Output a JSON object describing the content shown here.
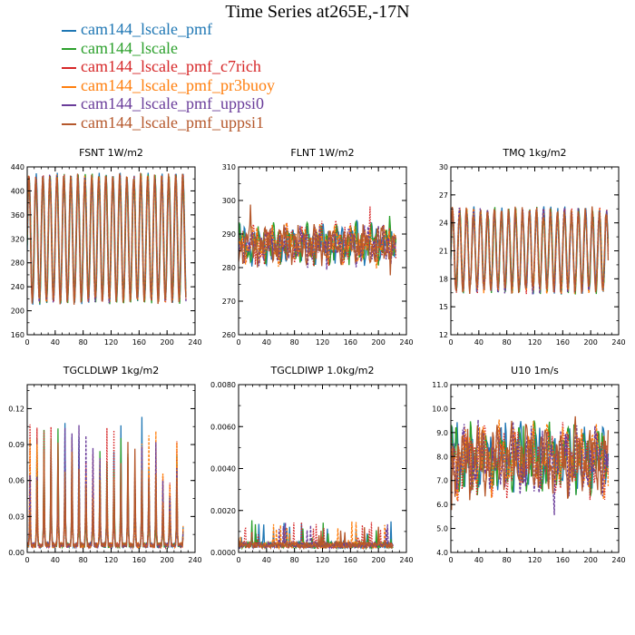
{
  "title": "Time Series at265E,-17N",
  "legend": [
    {
      "name": "cam144_lscale_pmf",
      "color": "#1f77b4",
      "dash": "solid"
    },
    {
      "name": "cam144_lscale",
      "color": "#2ca02c",
      "dash": "solid"
    },
    {
      "name": "cam144_lscale_pmf_c7rich",
      "color": "#d62728",
      "dash": "dotted"
    },
    {
      "name": "cam144_lscale_pmf_pr3buoy",
      "color": "#ff7f0e",
      "dash": "dashed"
    },
    {
      "name": "cam144_lscale_pmf_uppsi0",
      "color": "#6a3d9a",
      "dash": "dashed"
    },
    {
      "name": "cam144_lscale_pmf_uppsi1",
      "color": "#b5582c",
      "dash": "solid"
    }
  ],
  "chart_data": [
    {
      "type": "line",
      "title": "FSNT   1W/m2",
      "ylim": [
        160,
        440
      ],
      "yticks": [
        "160",
        "200",
        "240",
        "280",
        "320",
        "360",
        "400",
        "440"
      ],
      "xlim": [
        0,
        240
      ],
      "xticks": [
        "0",
        "40",
        "80",
        "120",
        "160",
        "200",
        "240"
      ],
      "n": 228,
      "pattern": "diurnal",
      "period": 10,
      "base": 320,
      "amp": 105,
      "noise": 6
    },
    {
      "type": "line",
      "title": "FLNT   1W/m2",
      "ylim": [
        260,
        310
      ],
      "yticks": [
        "260",
        "270",
        "280",
        "290",
        "300",
        "310"
      ],
      "xlim": [
        0,
        240
      ],
      "xticks": [
        "0",
        "40",
        "80",
        "120",
        "160",
        "200",
        "240"
      ],
      "n": 226,
      "pattern": "noisy",
      "base": 287,
      "amp": 5,
      "noise": 2.5
    },
    {
      "type": "line",
      "title": "TMQ   1kg/m2",
      "ylim": [
        12,
        30
      ],
      "yticks": [
        "12",
        "15",
        "18",
        "21",
        "24",
        "27",
        "30"
      ],
      "xlim": [
        0,
        240
      ],
      "xticks": [
        "0",
        "40",
        "80",
        "120",
        "160",
        "200",
        "240"
      ],
      "n": 226,
      "pattern": "diurnal",
      "period": 10,
      "base": 21,
      "amp": 4.2,
      "noise": 0.6
    },
    {
      "type": "line",
      "title": "TGCLDLWP   1kg/m2",
      "ylim": [
        0,
        0.14
      ],
      "yticks": [
        "0.00",
        "0.03",
        "0.06",
        "0.09",
        "0.12"
      ],
      "yticks_at": [
        0,
        0.03,
        0.06,
        0.09,
        0.12
      ],
      "xlim": [
        0,
        240
      ],
      "xticks": [
        "0",
        "40",
        "80",
        "120",
        "160",
        "200",
        "240"
      ],
      "n": 224,
      "pattern": "spiky",
      "period": 10,
      "base": 0.004,
      "amp": 0.08,
      "noise": 0.01
    },
    {
      "type": "line",
      "title": "TGCLDIWP   1.0kg/m2",
      "ylim": [
        0,
        0.008
      ],
      "yticks": [
        "0.0000",
        "0.0020",
        "0.0040",
        "0.0060",
        "0.0080"
      ],
      "xlim": [
        0,
        240
      ],
      "xticks": [
        "0",
        "40",
        "80",
        "120",
        "160",
        "200",
        "240"
      ],
      "n": 222,
      "pattern": "ice",
      "base": 0.0002,
      "amp": 0.0006,
      "noise": 0.0003
    },
    {
      "type": "line",
      "title": "U10   1m/s",
      "ylim": [
        4,
        11
      ],
      "yticks": [
        "4.0",
        "5.0",
        "6.0",
        "7.0",
        "8.0",
        "9.0",
        "10.0",
        "11.0"
      ],
      "xlim": [
        0,
        240
      ],
      "xticks": [
        "0",
        "40",
        "80",
        "120",
        "160",
        "200",
        "240"
      ],
      "n": 226,
      "pattern": "noisy",
      "base": 7.9,
      "amp": 1.3,
      "noise": 0.55
    }
  ]
}
